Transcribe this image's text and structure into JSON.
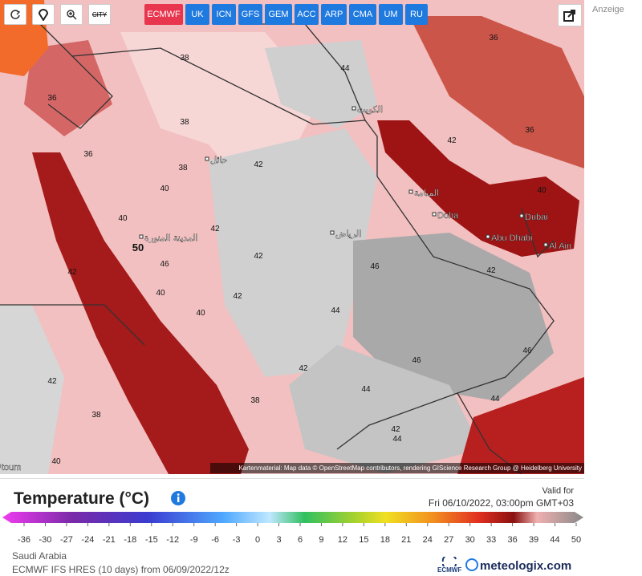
{
  "toolbar": {
    "city_button": "CITY"
  },
  "models": [
    "ECMWF",
    "UK",
    "ICN",
    "GFS",
    "GEM",
    "ACC",
    "ARP",
    "CMA",
    "UM",
    "RU"
  ],
  "ad_label": "Anzeige",
  "map": {
    "contour_labels": [
      38,
      38,
      36,
      36,
      38,
      40,
      42,
      42,
      42,
      40,
      50,
      46,
      42,
      40,
      42,
      40,
      44,
      42,
      44,
      46,
      46,
      46,
      44,
      42,
      40,
      38,
      42,
      38,
      42,
      44,
      42,
      40,
      36,
      36,
      44
    ],
    "place_names": [
      "Doha",
      "Dubai",
      "Abu Dhabi",
      "Al Ain",
      "toum",
      "الرياض",
      "المدينة المنورة",
      "المنامة",
      "الكويت",
      "حائل"
    ],
    "attribution": "Kartenmaterial: Map data © OpenStreetMap contributors, rendering GIScience Research Group @ Heidelberg University"
  },
  "legend": {
    "title": "Temperature (°C)",
    "valid_for": "Valid for",
    "valid_time": "Fri 06/10/2022, 03:00pm GMT+03",
    "ticks": [
      -36,
      -30,
      -27,
      -24,
      -21,
      -18,
      -15,
      -12,
      -9,
      -6,
      -3,
      0,
      3,
      6,
      9,
      12,
      15,
      18,
      21,
      24,
      27,
      30,
      33,
      36,
      39,
      44,
      50
    ]
  },
  "footer": {
    "region": "Saudi Arabia",
    "model_run": "ECMWF IFS HRES (10 days) from 06/09/2022/12z",
    "ecmwf_logo": "ECMWF",
    "brand": "meteologix.com"
  }
}
